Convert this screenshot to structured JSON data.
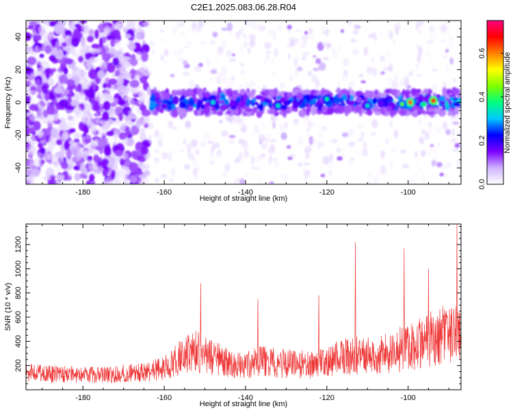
{
  "title": "C2E1.2025.083.06.28.R04",
  "chart_data": [
    {
      "type": "heatmap",
      "xlabel": "Height of straight line (km)",
      "ylabel": "Frequency (Hz)",
      "xlim": [
        -194,
        -87
      ],
      "ylim": [
        -50,
        50
      ],
      "xticks": [
        -180,
        -160,
        -140,
        -120,
        -100
      ],
      "yticks": [
        -40,
        -20,
        0,
        20,
        40
      ],
      "grid": false,
      "colorbar": {
        "label": "Normalized spectral amplitude",
        "range": [
          0,
          0.75
        ],
        "ticks": [
          0.0,
          0.2,
          0.4,
          0.6
        ],
        "colors": [
          "#ffffff",
          "#d0b4ff",
          "#7b00ff",
          "#0000ff",
          "#00c8ff",
          "#00ff80",
          "#7fff00",
          "#ffff00",
          "#ff8000",
          "#ff0000",
          "#ff0080"
        ]
      }
    },
    {
      "type": "line",
      "xlabel": "Height of straight line (km)",
      "ylabel": "SNR (10 * v/v)",
      "xlim": [
        -194,
        -87
      ],
      "ylim": [
        0,
        1370
      ],
      "xticks": [
        -180,
        -160,
        -140,
        -120,
        -100
      ],
      "yticks": [
        200,
        400,
        600,
        800,
        1000,
        1200
      ],
      "grid": false,
      "color": "#ee3333",
      "envelope": {
        "x": [
          -194,
          -185,
          -175,
          -165,
          -160,
          -156,
          -152,
          -148,
          -144,
          -140,
          -136,
          -132,
          -128,
          -124,
          -120,
          -116,
          -112,
          -108,
          -104,
          -100,
          -96,
          -92,
          -88,
          -87
        ],
        "y": [
          130,
          120,
          115,
          135,
          170,
          250,
          300,
          250,
          200,
          190,
          220,
          210,
          200,
          190,
          210,
          260,
          270,
          260,
          300,
          330,
          380,
          420,
          450,
          480
        ]
      },
      "peaks": [
        {
          "x": -151,
          "y": 880
        },
        {
          "x": -137,
          "y": 750
        },
        {
          "x": -122,
          "y": 780
        },
        {
          "x": -113,
          "y": 1220
        },
        {
          "x": -101,
          "y": 1170
        },
        {
          "x": -95,
          "y": 1000
        },
        {
          "x": -88,
          "y": 1370
        }
      ]
    }
  ]
}
